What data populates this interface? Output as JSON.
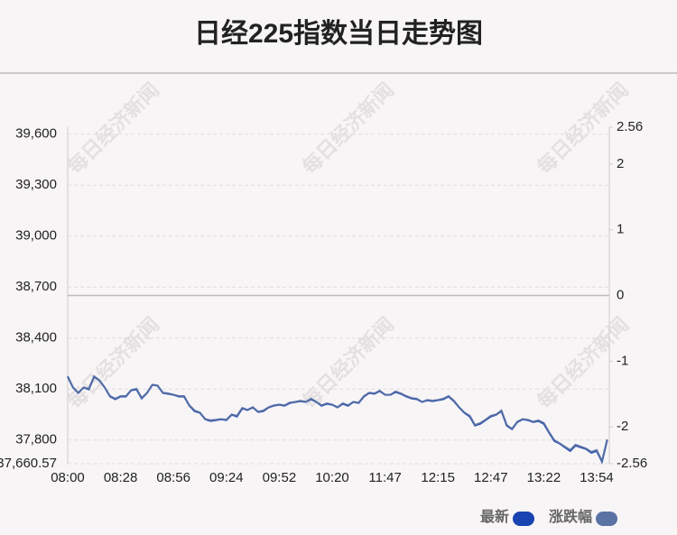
{
  "chart_data": {
    "type": "line",
    "title": "日经225指数当日走势图",
    "watermark": "每日经济新闻",
    "categories": [
      "08:00",
      null,
      null,
      null,
      null,
      null,
      null,
      null,
      null,
      null,
      "08:28",
      null,
      null,
      null,
      null,
      null,
      null,
      null,
      null,
      null,
      "08:56",
      null,
      null,
      null,
      null,
      null,
      null,
      null,
      null,
      null,
      "09:24",
      null,
      null,
      null,
      null,
      null,
      null,
      null,
      null,
      null,
      "09:52",
      null,
      null,
      null,
      null,
      null,
      null,
      null,
      null,
      null,
      "10:20",
      null,
      null,
      null,
      null,
      null,
      null,
      null,
      null,
      null,
      "11:47",
      null,
      null,
      null,
      null,
      null,
      null,
      null,
      null,
      null,
      "12:15",
      null,
      null,
      null,
      null,
      null,
      null,
      null,
      null,
      null,
      "12:47",
      null,
      null,
      null,
      null,
      null,
      null,
      null,
      null,
      null,
      "13:22",
      null,
      null,
      null,
      null,
      null,
      null,
      null,
      null,
      null,
      "13:54",
      null,
      null
    ],
    "series": [
      {
        "name": "最新",
        "color": "#1843b0",
        "axis": "y",
        "values": [
          38173,
          38109,
          38077,
          38109,
          38098,
          38173,
          38151,
          38109,
          38056,
          38040,
          38056,
          38056,
          38093,
          38098,
          38045,
          38077,
          38125,
          38120,
          38077,
          38072,
          38066,
          38056,
          38056,
          38002,
          37970,
          37960,
          37922,
          37912,
          37917,
          37922,
          37917,
          37949,
          37938,
          37986,
          37976,
          37992,
          37965,
          37970,
          37992,
          38002,
          38008,
          38002,
          38018,
          38024,
          38029,
          38024,
          38040,
          38024,
          38002,
          38013,
          38008,
          37992,
          38013,
          38002,
          38024,
          38018,
          38056,
          38077,
          38072,
          38088,
          38066,
          38066,
          38082,
          38072,
          38056,
          38045,
          38040,
          38024,
          38034,
          38029,
          38034,
          38040,
          38056,
          38029,
          37992,
          37960,
          37938,
          37885,
          37896,
          37917,
          37938,
          37949,
          37970,
          37885,
          37864,
          37906,
          37922,
          37917,
          37906,
          37912,
          37896,
          37843,
          37795,
          37779,
          37757,
          37736,
          37768,
          37757,
          37747,
          37725,
          37736,
          37672,
          37800
        ]
      },
      {
        "name": "涨跌幅",
        "color": "#5a72a4",
        "axis": "y2",
        "values": [
          -1.23,
          -1.4,
          -1.48,
          -1.4,
          -1.42,
          -1.23,
          -1.29,
          -1.4,
          -1.53,
          -1.57,
          -1.53,
          -1.53,
          -1.44,
          -1.42,
          -1.56,
          -1.48,
          -1.36,
          -1.37,
          -1.48,
          -1.49,
          -1.51,
          -1.53,
          -1.53,
          -1.67,
          -1.75,
          -1.78,
          -1.88,
          -1.9,
          -1.89,
          -1.88,
          -1.89,
          -1.81,
          -1.83,
          -1.71,
          -1.74,
          -1.7,
          -1.77,
          -1.75,
          -1.7,
          -1.67,
          -1.66,
          -1.67,
          -1.63,
          -1.62,
          -1.6,
          -1.62,
          -1.57,
          -1.62,
          -1.67,
          -1.64,
          -1.66,
          -1.7,
          -1.64,
          -1.67,
          -1.62,
          -1.63,
          -1.53,
          -1.48,
          -1.49,
          -1.45,
          -1.51,
          -1.51,
          -1.46,
          -1.49,
          -1.53,
          -1.56,
          -1.57,
          -1.62,
          -1.59,
          -1.6,
          -1.59,
          -1.57,
          -1.53,
          -1.6,
          -1.7,
          -1.78,
          -1.83,
          -1.97,
          -1.94,
          -1.89,
          -1.83,
          -1.81,
          -1.75,
          -1.97,
          -2.03,
          -1.92,
          -1.88,
          -1.89,
          -1.92,
          -1.9,
          -1.94,
          -2.08,
          -2.2,
          -2.25,
          -2.3,
          -2.35,
          -2.27,
          -2.3,
          -2.33,
          -2.38,
          -2.35,
          -2.52,
          -2.19
        ]
      }
    ],
    "ylim": [
      37660.57,
      39641
    ],
    "yticks": [
      {
        "value": 37660.57,
        "label": "37,660.57"
      },
      {
        "value": 37800,
        "label": "37,800"
      },
      {
        "value": 38100,
        "label": "38,100"
      },
      {
        "value": 38400,
        "label": "38,400"
      },
      {
        "value": 38700,
        "label": "38,700"
      },
      {
        "value": 39000,
        "label": "39,000"
      },
      {
        "value": 39300,
        "label": "39,300"
      },
      {
        "value": 39600,
        "label": "39,600"
      }
    ],
    "y2lim": [
      -2.56,
      2.56
    ],
    "y2ticks": [
      -2.56,
      -2,
      -1,
      0,
      1,
      2,
      2.56
    ],
    "grid": true
  }
}
